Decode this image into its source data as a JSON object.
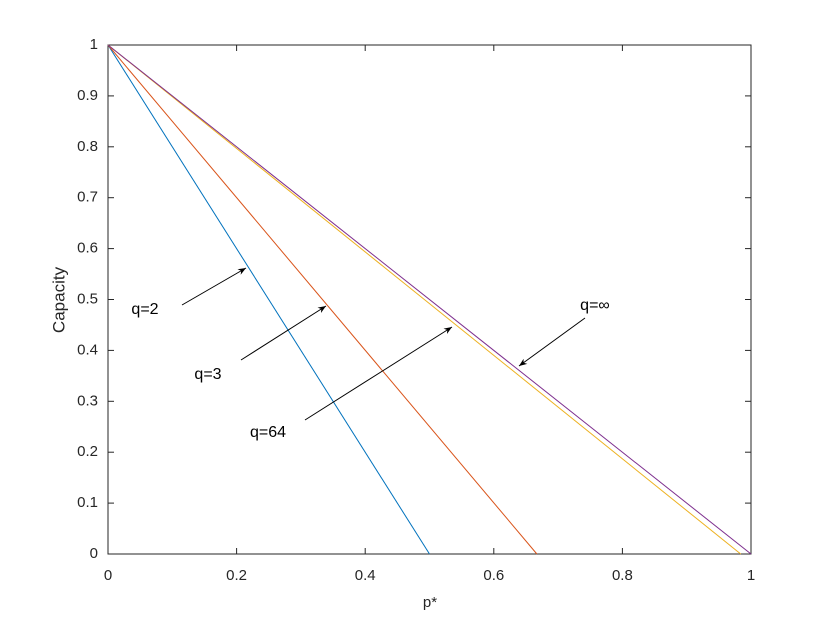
{
  "chart_data": {
    "type": "line",
    "xlabel": "p*",
    "ylabel": "Capacity",
    "xlim": [
      0,
      1
    ],
    "ylim": [
      0,
      1
    ],
    "xticks": [
      0,
      0.2,
      0.4,
      0.6,
      0.8,
      1
    ],
    "yticks": [
      0,
      0.1,
      0.2,
      0.3,
      0.4,
      0.5,
      0.6,
      0.7,
      0.8,
      0.9,
      1
    ],
    "grid": false,
    "series": [
      {
        "name": "q=2",
        "color": "#0072bd",
        "x": [
          0,
          0.5
        ],
        "values": [
          1,
          0
        ]
      },
      {
        "name": "q=3",
        "color": "#d95319",
        "x": [
          0,
          0.667
        ],
        "values": [
          1,
          0
        ]
      },
      {
        "name": "q=64",
        "color": "#edb120",
        "x": [
          0,
          0.984
        ],
        "values": [
          1,
          0
        ]
      },
      {
        "name": "q=∞",
        "color": "#7e2f8e",
        "x": [
          0,
          1
        ],
        "values": [
          1,
          0
        ]
      }
    ]
  }
}
